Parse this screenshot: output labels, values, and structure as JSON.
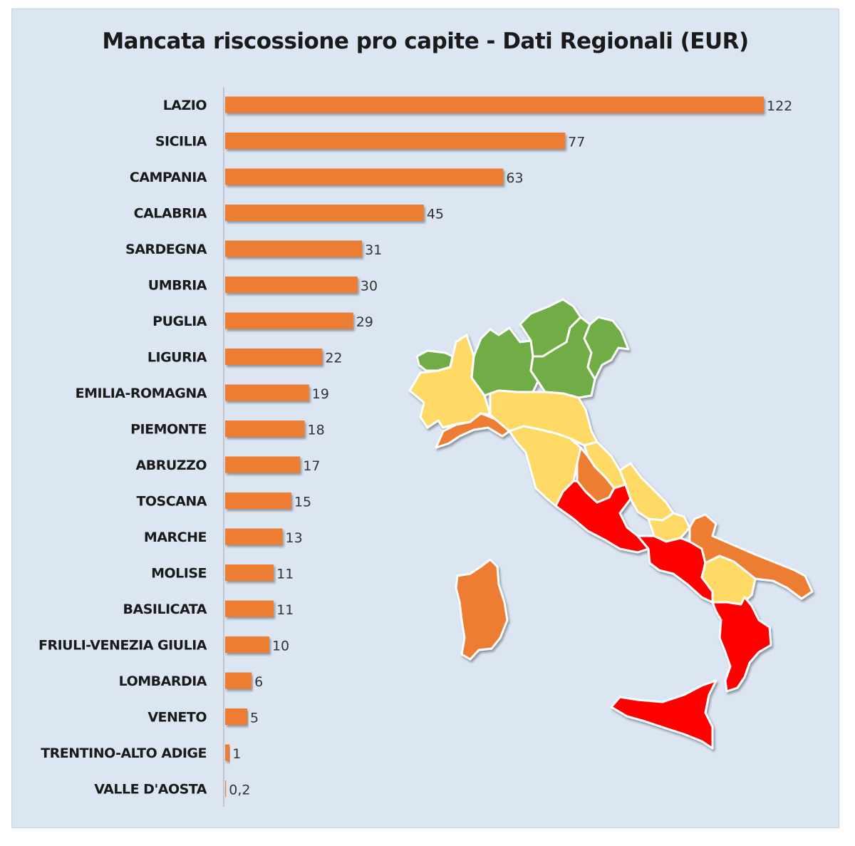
{
  "colors": {
    "background": "#dce6f2",
    "bar": "#ed7d31",
    "map_green": "#70ad47",
    "map_yellow": "#ffd966",
    "map_orange": "#ed7d31",
    "map_red": "#ff0000"
  },
  "chart_data": {
    "type": "bar",
    "orientation": "horizontal",
    "title": "Mancata riscossione pro capite - Dati Regionali (EUR)",
    "xlabel": "",
    "ylabel": "",
    "xlim": [
      0,
      122
    ],
    "grid": false,
    "legend": "none",
    "categories": [
      "LAZIO",
      "SICILIA",
      "CAMPANIA",
      "CALABRIA",
      "SARDEGNA",
      "UMBRIA",
      "PUGLIA",
      "LIGURIA",
      "EMILIA-ROMAGNA",
      "PIEMONTE",
      "ABRUZZO",
      "TOSCANA",
      "MARCHE",
      "MOLISE",
      "BASILICATA",
      "FRIULI-VENEZIA GIULIA",
      "LOMBARDIA",
      "VENETO",
      "TRENTINO-ALTO ADIGE",
      "VALLE D'AOSTA"
    ],
    "values": [
      122,
      77,
      63,
      45,
      31,
      30,
      29,
      22,
      19,
      18,
      17,
      15,
      13,
      11,
      11,
      10,
      6,
      5,
      1,
      0.2
    ],
    "value_labels": [
      "122",
      "77",
      "63",
      "45",
      "31",
      "30",
      "29",
      "22",
      "19",
      "18",
      "17",
      "15",
      "13",
      "11",
      "11",
      "10",
      "6",
      "5",
      "1",
      "0,2"
    ]
  },
  "map": {
    "description_icon": "italy-regions-map",
    "regions": [
      {
        "name": "valle-daosta",
        "class": "green"
      },
      {
        "name": "lombardia",
        "class": "green"
      },
      {
        "name": "trentino-alto-adige",
        "class": "green"
      },
      {
        "name": "veneto",
        "class": "green"
      },
      {
        "name": "friuli-venezia-giulia",
        "class": "green"
      },
      {
        "name": "piemonte",
        "class": "yellow"
      },
      {
        "name": "liguria",
        "class": "orange"
      },
      {
        "name": "emilia-romagna",
        "class": "yellow"
      },
      {
        "name": "toscana",
        "class": "yellow"
      },
      {
        "name": "marche",
        "class": "yellow"
      },
      {
        "name": "umbria",
        "class": "orange"
      },
      {
        "name": "lazio",
        "class": "red"
      },
      {
        "name": "abruzzo",
        "class": "yellow"
      },
      {
        "name": "molise",
        "class": "yellow"
      },
      {
        "name": "campania",
        "class": "red"
      },
      {
        "name": "puglia",
        "class": "orange"
      },
      {
        "name": "basilicata",
        "class": "yellow"
      },
      {
        "name": "calabria",
        "class": "red"
      },
      {
        "name": "sicilia",
        "class": "red"
      },
      {
        "name": "sardegna",
        "class": "orange"
      }
    ]
  }
}
